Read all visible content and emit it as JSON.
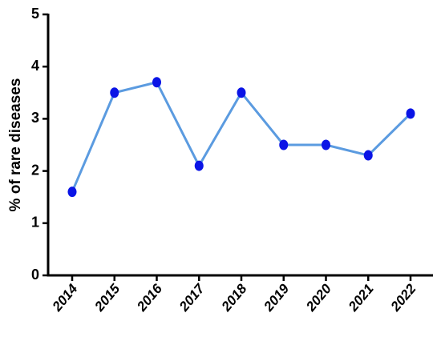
{
  "chart_data": {
    "type": "line",
    "ylabel": "% of rare diseases",
    "categories": [
      "2014",
      "2015",
      "2016",
      "2017",
      "2018",
      "2019",
      "2020",
      "2021",
      "2022"
    ],
    "series": [
      {
        "color": "#5b9be0",
        "marker_color": "#0a14e6",
        "values": [
          1.6,
          3.5,
          3.7,
          2.1,
          3.5,
          2.5,
          2.5,
          2.3,
          3.1
        ]
      }
    ],
    "ylim": [
      0,
      5
    ],
    "yticks": [
      0,
      1,
      2,
      3,
      4,
      5
    ]
  }
}
